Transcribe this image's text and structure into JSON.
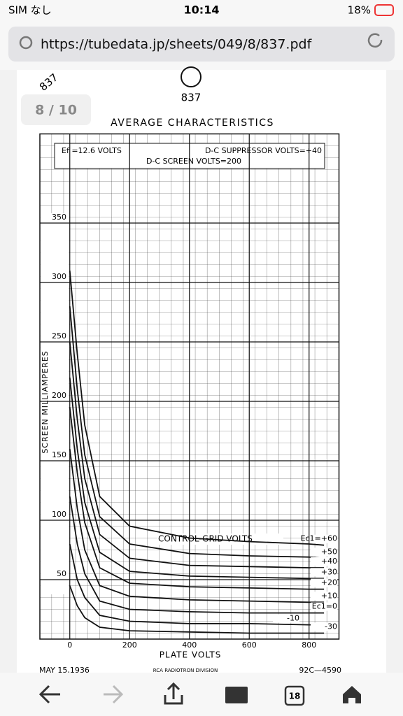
{
  "status_bar": {
    "carrier": "SIM なし",
    "time": "10:14",
    "battery": "18%"
  },
  "browser": {
    "url": "https://tubedata.jp/sheets/049/8/837.pdf",
    "tab_count": "18"
  },
  "pdf": {
    "corner_label": "837",
    "page_indicator": "8 / 10",
    "tube_number": "837",
    "footer": {
      "date": "MAY 15,1936",
      "division": "RCA RADIOTRON DIVISION",
      "code": "92C—4590"
    }
  },
  "chart_data": {
    "type": "line",
    "title": "AVERAGE CHARACTERISTICS",
    "conditions": [
      "Ef =12.6 VOLTS",
      "D-C SUPPRESSOR VOLTS=+40",
      "D-C SCREEN VOLTS=200"
    ],
    "annotation": "CONTROL-GRID VOLTS",
    "x_label": "PLATE VOLTS",
    "y_label": "SCREEN MILLIAMPERES",
    "x": [
      0,
      25,
      50,
      100,
      200,
      400,
      600,
      800,
      850
    ],
    "series": [
      {
        "name": "Ec1=+60",
        "color": "#111",
        "values": [
          310,
          240,
          180,
          120,
          95,
          85,
          82,
          80,
          79
        ]
      },
      {
        "name": "+50",
        "color": "#111",
        "values": [
          280,
          210,
          155,
          103,
          80,
          72,
          70,
          69,
          68
        ]
      },
      {
        "name": "+40",
        "color": "#111",
        "values": [
          250,
          185,
          135,
          88,
          68,
          62,
          61,
          60,
          60
        ]
      },
      {
        "name": "+30",
        "color": "#111",
        "values": [
          220,
          160,
          115,
          73,
          57,
          53,
          52,
          51,
          51
        ]
      },
      {
        "name": "+20",
        "color": "#111",
        "values": [
          195,
          140,
          98,
          60,
          47,
          44,
          43,
          42,
          42
        ]
      },
      {
        "name": "+10",
        "color": "#111",
        "values": [
          160,
          110,
          75,
          45,
          36,
          33,
          32,
          31,
          31
        ]
      },
      {
        "name": "Ec1=0",
        "color": "#111",
        "values": [
          120,
          80,
          55,
          32,
          25,
          23,
          22,
          22,
          22
        ]
      },
      {
        "name": "-10",
        "color": "#111",
        "values": [
          80,
          50,
          35,
          20,
          15,
          13,
          13,
          12,
          12
        ]
      },
      {
        "name": "-30",
        "color": "#111",
        "values": [
          45,
          28,
          18,
          10,
          7,
          6,
          5,
          5,
          5
        ]
      }
    ],
    "xlim": [
      -100,
      900
    ],
    "ylim": [
      0,
      425
    ],
    "xticks": [
      0,
      200,
      400,
      600,
      800
    ],
    "yticks": [
      50,
      100,
      150,
      200,
      250,
      300,
      350
    ],
    "grid": true
  }
}
